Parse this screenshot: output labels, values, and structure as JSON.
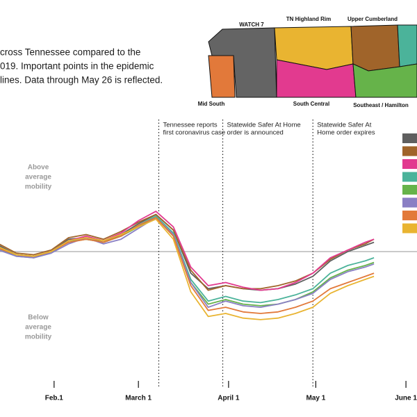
{
  "intro": [
    "cross Tennessee compared to the",
    "019. Important points in the epidemic",
    "lines. Data through May 26 is reflected."
  ],
  "map": {
    "regions": [
      "WATCH 7",
      "TN Highland Rim",
      "Upper Cumberland",
      "Mid South",
      "South Central",
      "Southeast / Hamilton"
    ]
  },
  "chart_data": {
    "type": "line",
    "above_label": [
      "Above",
      "average",
      "mobility"
    ],
    "below_label": [
      "Below",
      "average",
      "mobility"
    ],
    "annotations": [
      {
        "x": 68,
        "lines": [
          "Tennessee reports",
          "first coronavirus case"
        ]
      },
      {
        "x": 90,
        "lines": [
          "Statewide Safer At Home",
          "order is announced"
        ]
      },
      {
        "x": 121,
        "lines": [
          "Statewide Safer At",
          "Home order expires"
        ]
      }
    ],
    "reference_line": 0,
    "xlim": [
      13.4,
      156.8
    ],
    "ylim": [
      -40,
      40
    ],
    "xticks": [
      {
        "value": 32,
        "label": "Feb.1"
      },
      {
        "value": 61,
        "label": "March 1"
      },
      {
        "value": 92,
        "label": "April 1"
      },
      {
        "value": 122,
        "label": "May 1"
      },
      {
        "value": 153,
        "label": "June 1"
      }
    ],
    "x": [
      13,
      19,
      25,
      31,
      37,
      43,
      49,
      55,
      61,
      67,
      73,
      79,
      85,
      91,
      97,
      103,
      109,
      115,
      121,
      127,
      133,
      139,
      142
    ],
    "series": [
      {
        "color": "#5f5f5f",
        "values": [
          2,
          -1,
          -1.5,
          0,
          4,
          4.5,
          3,
          5.5,
          9,
          12,
          7,
          -7,
          -12,
          -11,
          -12,
          -12.5,
          -12,
          -10.5,
          -8,
          -3,
          0,
          2,
          3
        ]
      },
      {
        "color": "#a0642a",
        "values": [
          2.5,
          -0.5,
          -1,
          0.5,
          4.5,
          5.5,
          4,
          6.5,
          9.5,
          12,
          7,
          -6,
          -12.5,
          -11,
          -12,
          -12,
          -11,
          -9.5,
          -7,
          -2.5,
          0.5,
          2.5,
          4
        ]
      },
      {
        "color": "#e23a8f",
        "values": [
          1.5,
          -1,
          -2,
          0,
          3.5,
          5,
          3.5,
          6,
          10,
          13,
          8,
          -5,
          -11,
          -10,
          -11.5,
          -12.5,
          -12,
          -10,
          -7,
          -2,
          0.5,
          3,
          4
        ]
      },
      {
        "color": "#4bb39a",
        "values": [
          1,
          -1.5,
          -2,
          -0.5,
          3.5,
          4,
          3,
          5,
          8.5,
          11.5,
          6,
          -9,
          -16,
          -14.5,
          -16,
          -16.5,
          -15.5,
          -14,
          -12,
          -7,
          -4.5,
          -3,
          -2
        ]
      },
      {
        "color": "#66b34a",
        "values": [
          1.5,
          -1,
          -1.5,
          0,
          3,
          4,
          3,
          5,
          8,
          11,
          5,
          -10,
          -17,
          -15.5,
          -17,
          -17.5,
          -17,
          -15.5,
          -13,
          -8.5,
          -6,
          -4.5,
          -3.5
        ]
      },
      {
        "color": "#8a7fc4",
        "values": [
          0.5,
          -1.5,
          -2,
          -0.5,
          2.5,
          4.5,
          2.5,
          4,
          7.5,
          11,
          5.5,
          -10,
          -18,
          -16,
          -17.5,
          -18,
          -17,
          -15.5,
          -13.5,
          -9,
          -6.5,
          -5,
          -4
        ]
      },
      {
        "color": "#e2793a",
        "values": [
          1,
          -1,
          -1.5,
          0,
          3,
          4,
          3,
          5,
          8.5,
          11,
          5,
          -11,
          -19,
          -18,
          -19.5,
          -20,
          -19.5,
          -18,
          -16,
          -12,
          -10,
          -8,
          -7
        ]
      },
      {
        "color": "#e9b431",
        "values": [
          1.5,
          -1,
          -1.5,
          0,
          3.5,
          4.5,
          3.5,
          5.5,
          8,
          10.5,
          4,
          -13,
          -21,
          -20,
          -21.5,
          -22,
          -21.5,
          -20,
          -18,
          -13.5,
          -11,
          -9,
          -8
        ]
      }
    ]
  }
}
